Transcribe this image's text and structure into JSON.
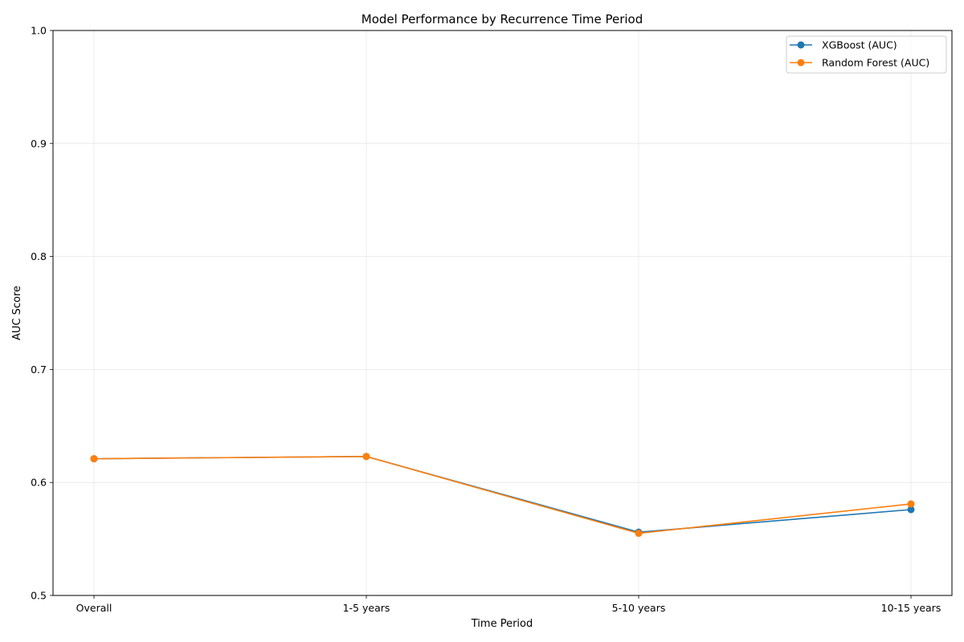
{
  "chart_data": {
    "type": "line",
    "title": "Model Performance by Recurrence Time Period",
    "xlabel": "Time Period",
    "ylabel": "AUC Score",
    "categories": [
      "Overall",
      "1-5 years",
      "5-10 years",
      "10-15 years"
    ],
    "ylim": [
      0.5,
      1.0
    ],
    "yticks": [
      "0.5",
      "0.6",
      "0.7",
      "0.8",
      "0.9",
      "1.0"
    ],
    "grid": true,
    "legend_position": "top-right",
    "series": [
      {
        "name": "XGBoost (AUC)",
        "color": "#1f77b4",
        "marker": "circle",
        "values": [
          0.621,
          0.623,
          0.556,
          0.576
        ]
      },
      {
        "name": "Random Forest (AUC)",
        "color": "#ff7f0e",
        "marker": "circle",
        "values": [
          0.621,
          0.623,
          0.555,
          0.581
        ]
      }
    ]
  }
}
